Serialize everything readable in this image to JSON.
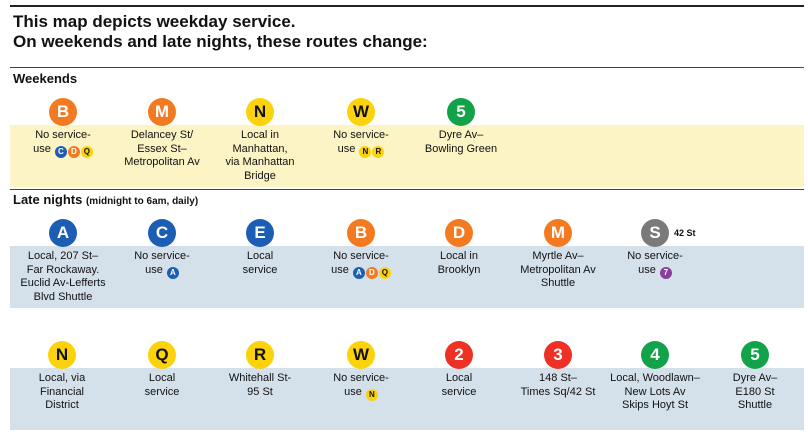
{
  "heading": {
    "line1": "This map depicts weekday service.",
    "line2": "On weekends and late nights, these routes change:"
  },
  "weekends": {
    "title": "Weekends",
    "items": [
      {
        "route": "B",
        "color": "#f47a21",
        "desc": [
          "No service-",
          "use"
        ],
        "alts": [
          "C",
          "D",
          "Q"
        ]
      },
      {
        "route": "M",
        "color": "#f47a21",
        "desc": [
          "Delancey St/",
          "Essex St–",
          "Metropolitan Av"
        ]
      },
      {
        "route": "N",
        "color": "#fcd20b",
        "desc": [
          "Local in",
          "Manhattan,",
          "via Manhattan",
          "Bridge"
        ]
      },
      {
        "route": "W",
        "color": "#fcd20b",
        "desc": [
          "No service-",
          "use"
        ],
        "alts": [
          "N",
          "R"
        ]
      },
      {
        "route": "5",
        "color": "#12a34a",
        "desc": [
          "Dyre Av–",
          "Bowling Green"
        ]
      }
    ]
  },
  "late_nights": {
    "title": "Late nights",
    "subtitle": "(midnight to 6am, daily)",
    "row1": [
      {
        "route": "A",
        "color": "#1b5eb4",
        "desc": [
          "Local, 207 St–",
          "Far Rockaway.",
          "Euclid Av-Lefferts",
          "Blvd Shuttle"
        ]
      },
      {
        "route": "C",
        "color": "#1b5eb4",
        "desc": [
          "No service-",
          "use"
        ],
        "alts": [
          "A"
        ]
      },
      {
        "route": "E",
        "color": "#1b5eb4",
        "desc": [
          "Local",
          "service"
        ]
      },
      {
        "route": "B",
        "color": "#f47a21",
        "desc": [
          "No service-",
          "use"
        ],
        "alts": [
          "A",
          "D",
          "Q"
        ]
      },
      {
        "route": "D",
        "color": "#f47a21",
        "desc": [
          "Local in",
          "Brooklyn"
        ]
      },
      {
        "route": "M",
        "color": "#f47a21",
        "desc": [
          "Myrtle Av–",
          "Metropolitan Av",
          "Shuttle"
        ]
      },
      {
        "route": "S",
        "color": "#7a7a7a",
        "badge": "42 St",
        "desc": [
          "No service-",
          "use"
        ],
        "alts": [
          "7"
        ]
      }
    ],
    "row2": [
      {
        "route": "N",
        "color": "#fcd20b",
        "desc": [
          "Local, via",
          "Financial",
          "District"
        ]
      },
      {
        "route": "Q",
        "color": "#fcd20b",
        "desc": [
          "Local",
          "service"
        ]
      },
      {
        "route": "R",
        "color": "#fcd20b",
        "desc": [
          "Whitehall St-",
          "95 St"
        ]
      },
      {
        "route": "W",
        "color": "#fcd20b",
        "desc": [
          "No service-",
          "use"
        ],
        "alts": [
          "N"
        ]
      },
      {
        "route": "2",
        "color": "#ee3124",
        "desc": [
          "Local",
          "service"
        ]
      },
      {
        "route": "3",
        "color": "#ee3124",
        "desc": [
          "148 St–",
          "Times Sq/42 St"
        ]
      },
      {
        "route": "4",
        "color": "#12a34a",
        "desc": [
          "Local, Woodlawn–",
          "New Lots Av",
          "Skips Hoyt St"
        ]
      },
      {
        "route": "5",
        "color": "#12a34a",
        "desc": [
          "Dyre Av–",
          "E180 St",
          "Shuttle"
        ]
      }
    ]
  }
}
